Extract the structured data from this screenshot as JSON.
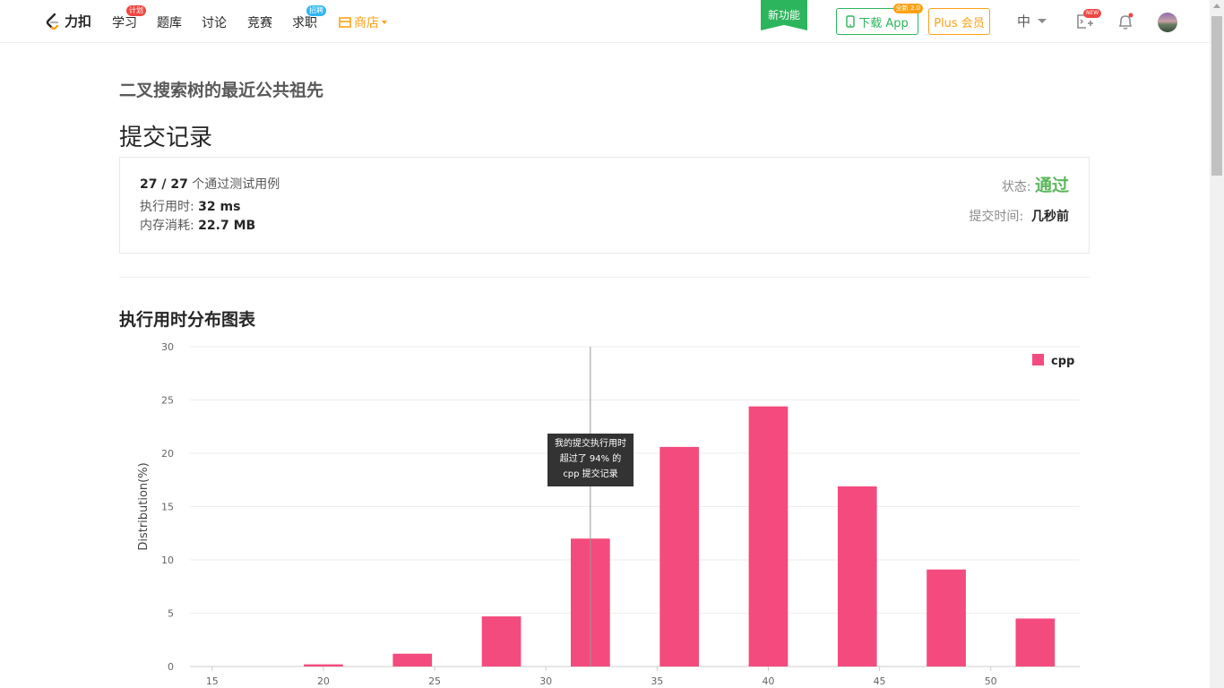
{
  "nav": {
    "logo_text": "力扣",
    "items": [
      {
        "label": "学习",
        "badge": "计划"
      },
      {
        "label": "题库"
      },
      {
        "label": "讨论"
      },
      {
        "label": "竞赛"
      },
      {
        "label": "求职",
        "badge": "招聘"
      }
    ],
    "shop_label": "商店",
    "new_feature": "新功能",
    "download_label": "下载 App",
    "download_badge": "全新 2.0",
    "plus_label": "Plus 会员",
    "lang_label": "中",
    "new_badge": "NEW",
    "icons": [
      "playground-icon",
      "bell-icon",
      "avatar"
    ]
  },
  "problem_title": "二叉搜索树的最近公共祖先",
  "page_heading": "提交记录",
  "summary": {
    "cases_passed": "27 / 27",
    "cases_text": "个通过测试用例",
    "runtime_label": "执行用时:",
    "runtime_value": "32 ms",
    "memory_label": "内存消耗:",
    "memory_value": "22.7 MB",
    "status_label": "状态:",
    "status_value": "通过",
    "submit_time_label": "提交时间:",
    "submit_time_value": "几秒前"
  },
  "colors": {
    "bar": "#f34b7d",
    "accepted": "#5cb85c",
    "brand": "#ffa116",
    "green": "#2db55d"
  },
  "chart_title": "执行用时分布图表",
  "chart_data": {
    "type": "bar",
    "ylabel": "Distribution(%)",
    "xlim": [
      14,
      54
    ],
    "ylim": [
      0,
      30
    ],
    "xticks": [
      15,
      20,
      25,
      30,
      35,
      40,
      45,
      50
    ],
    "yticks": [
      0,
      5,
      10,
      15,
      20,
      25,
      30
    ],
    "series": [
      {
        "name": "cpp",
        "x": [
          16,
          20,
          24,
          28,
          32,
          36,
          40,
          44,
          48,
          52
        ],
        "values": [
          0,
          0.2,
          1.2,
          4.7,
          12.0,
          20.6,
          24.4,
          16.9,
          9.1,
          4.5
        ]
      }
    ],
    "marker_x": 32,
    "legend_position": "top-right",
    "grid": true,
    "tooltip": [
      "我的提交执行用时",
      "超过了 94% 的",
      "cpp 提交记录"
    ]
  }
}
